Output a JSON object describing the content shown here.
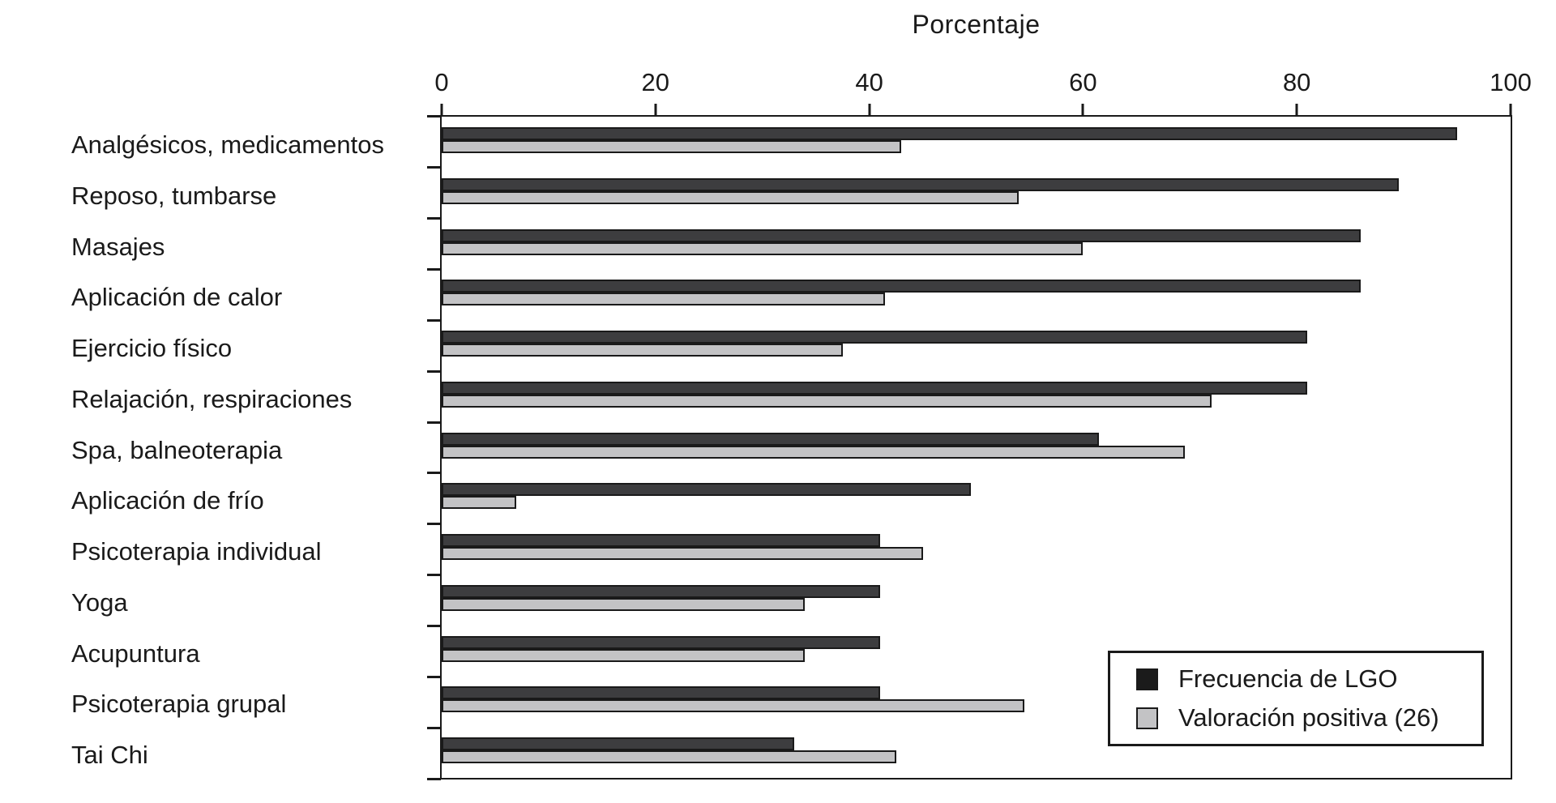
{
  "chart_data": {
    "type": "bar",
    "orientation": "horizontal",
    "title": "Porcentaje",
    "xlabel": "Porcentaje",
    "ylabel": "",
    "xlim": [
      0,
      100
    ],
    "x_ticks": [
      "0",
      "20",
      "40",
      "60",
      "80",
      "100"
    ],
    "grid": false,
    "legend_position": "inside-bottom-right",
    "categories": [
      "Analgésicos, medicamentos",
      "Reposo, tumbarse",
      "Masajes",
      "Aplicación de calor",
      "Ejercicio físico",
      "Relajación, respiraciones",
      "Spa, balneoterapia",
      "Aplicación de frío",
      "Psicoterapia individual",
      "Yoga",
      "Acupuntura",
      "Psicoterapia grupal",
      "Tai Chi"
    ],
    "series": [
      {
        "name": "Frecuencia de LGO",
        "color": "#3d3d3f",
        "values": [
          95,
          89.5,
          86,
          86,
          81,
          81,
          61.5,
          49.5,
          41,
          41,
          41,
          41,
          33
        ]
      },
      {
        "name": "Valoración positiva (26)",
        "color": "#c3c3c5",
        "values": [
          43,
          54,
          60,
          41.5,
          37.5,
          72,
          69.5,
          7,
          45,
          34,
          34,
          54.5,
          42.5
        ]
      }
    ]
  },
  "legend": {
    "entries": [
      {
        "label": "Frecuencia de LGO",
        "color": "#1b1b1b"
      },
      {
        "label": "Valoración positiva (26)",
        "color": "#c3c3c5"
      }
    ]
  },
  "colors": {
    "axis": "#1a1a1a",
    "text": "#1a1a1a",
    "background": "#ffffff"
  }
}
